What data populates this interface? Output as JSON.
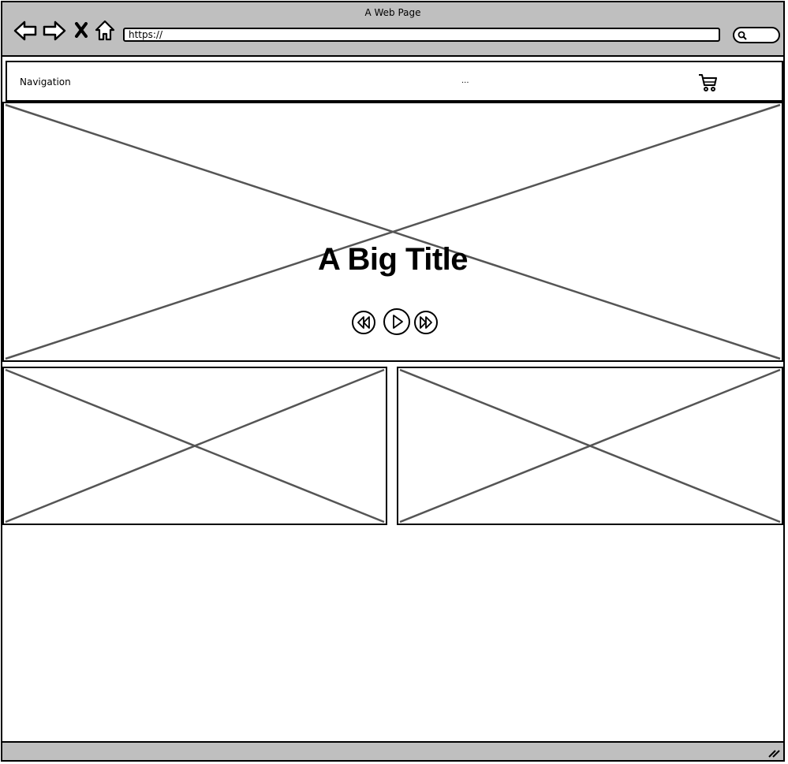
{
  "window": {
    "title": "A Web Page"
  },
  "browser": {
    "back_icon": "back-arrow-icon",
    "forward_icon": "forward-arrow-icon",
    "stop_icon": "close-x-icon",
    "home_icon": "home-icon",
    "url": "https://",
    "search_icon": "search-icon"
  },
  "navbar": {
    "label": "Navigation",
    "ellipsis": "...",
    "cart_icon": "shopping-cart-icon"
  },
  "hero": {
    "title": "A Big Title",
    "controls": [
      "rewind-icon",
      "play-icon",
      "fast-forward-icon"
    ]
  },
  "colors": {
    "chrome": "#bfbfbf",
    "stroke": "#000000",
    "placeholder_lines": "#555555"
  }
}
